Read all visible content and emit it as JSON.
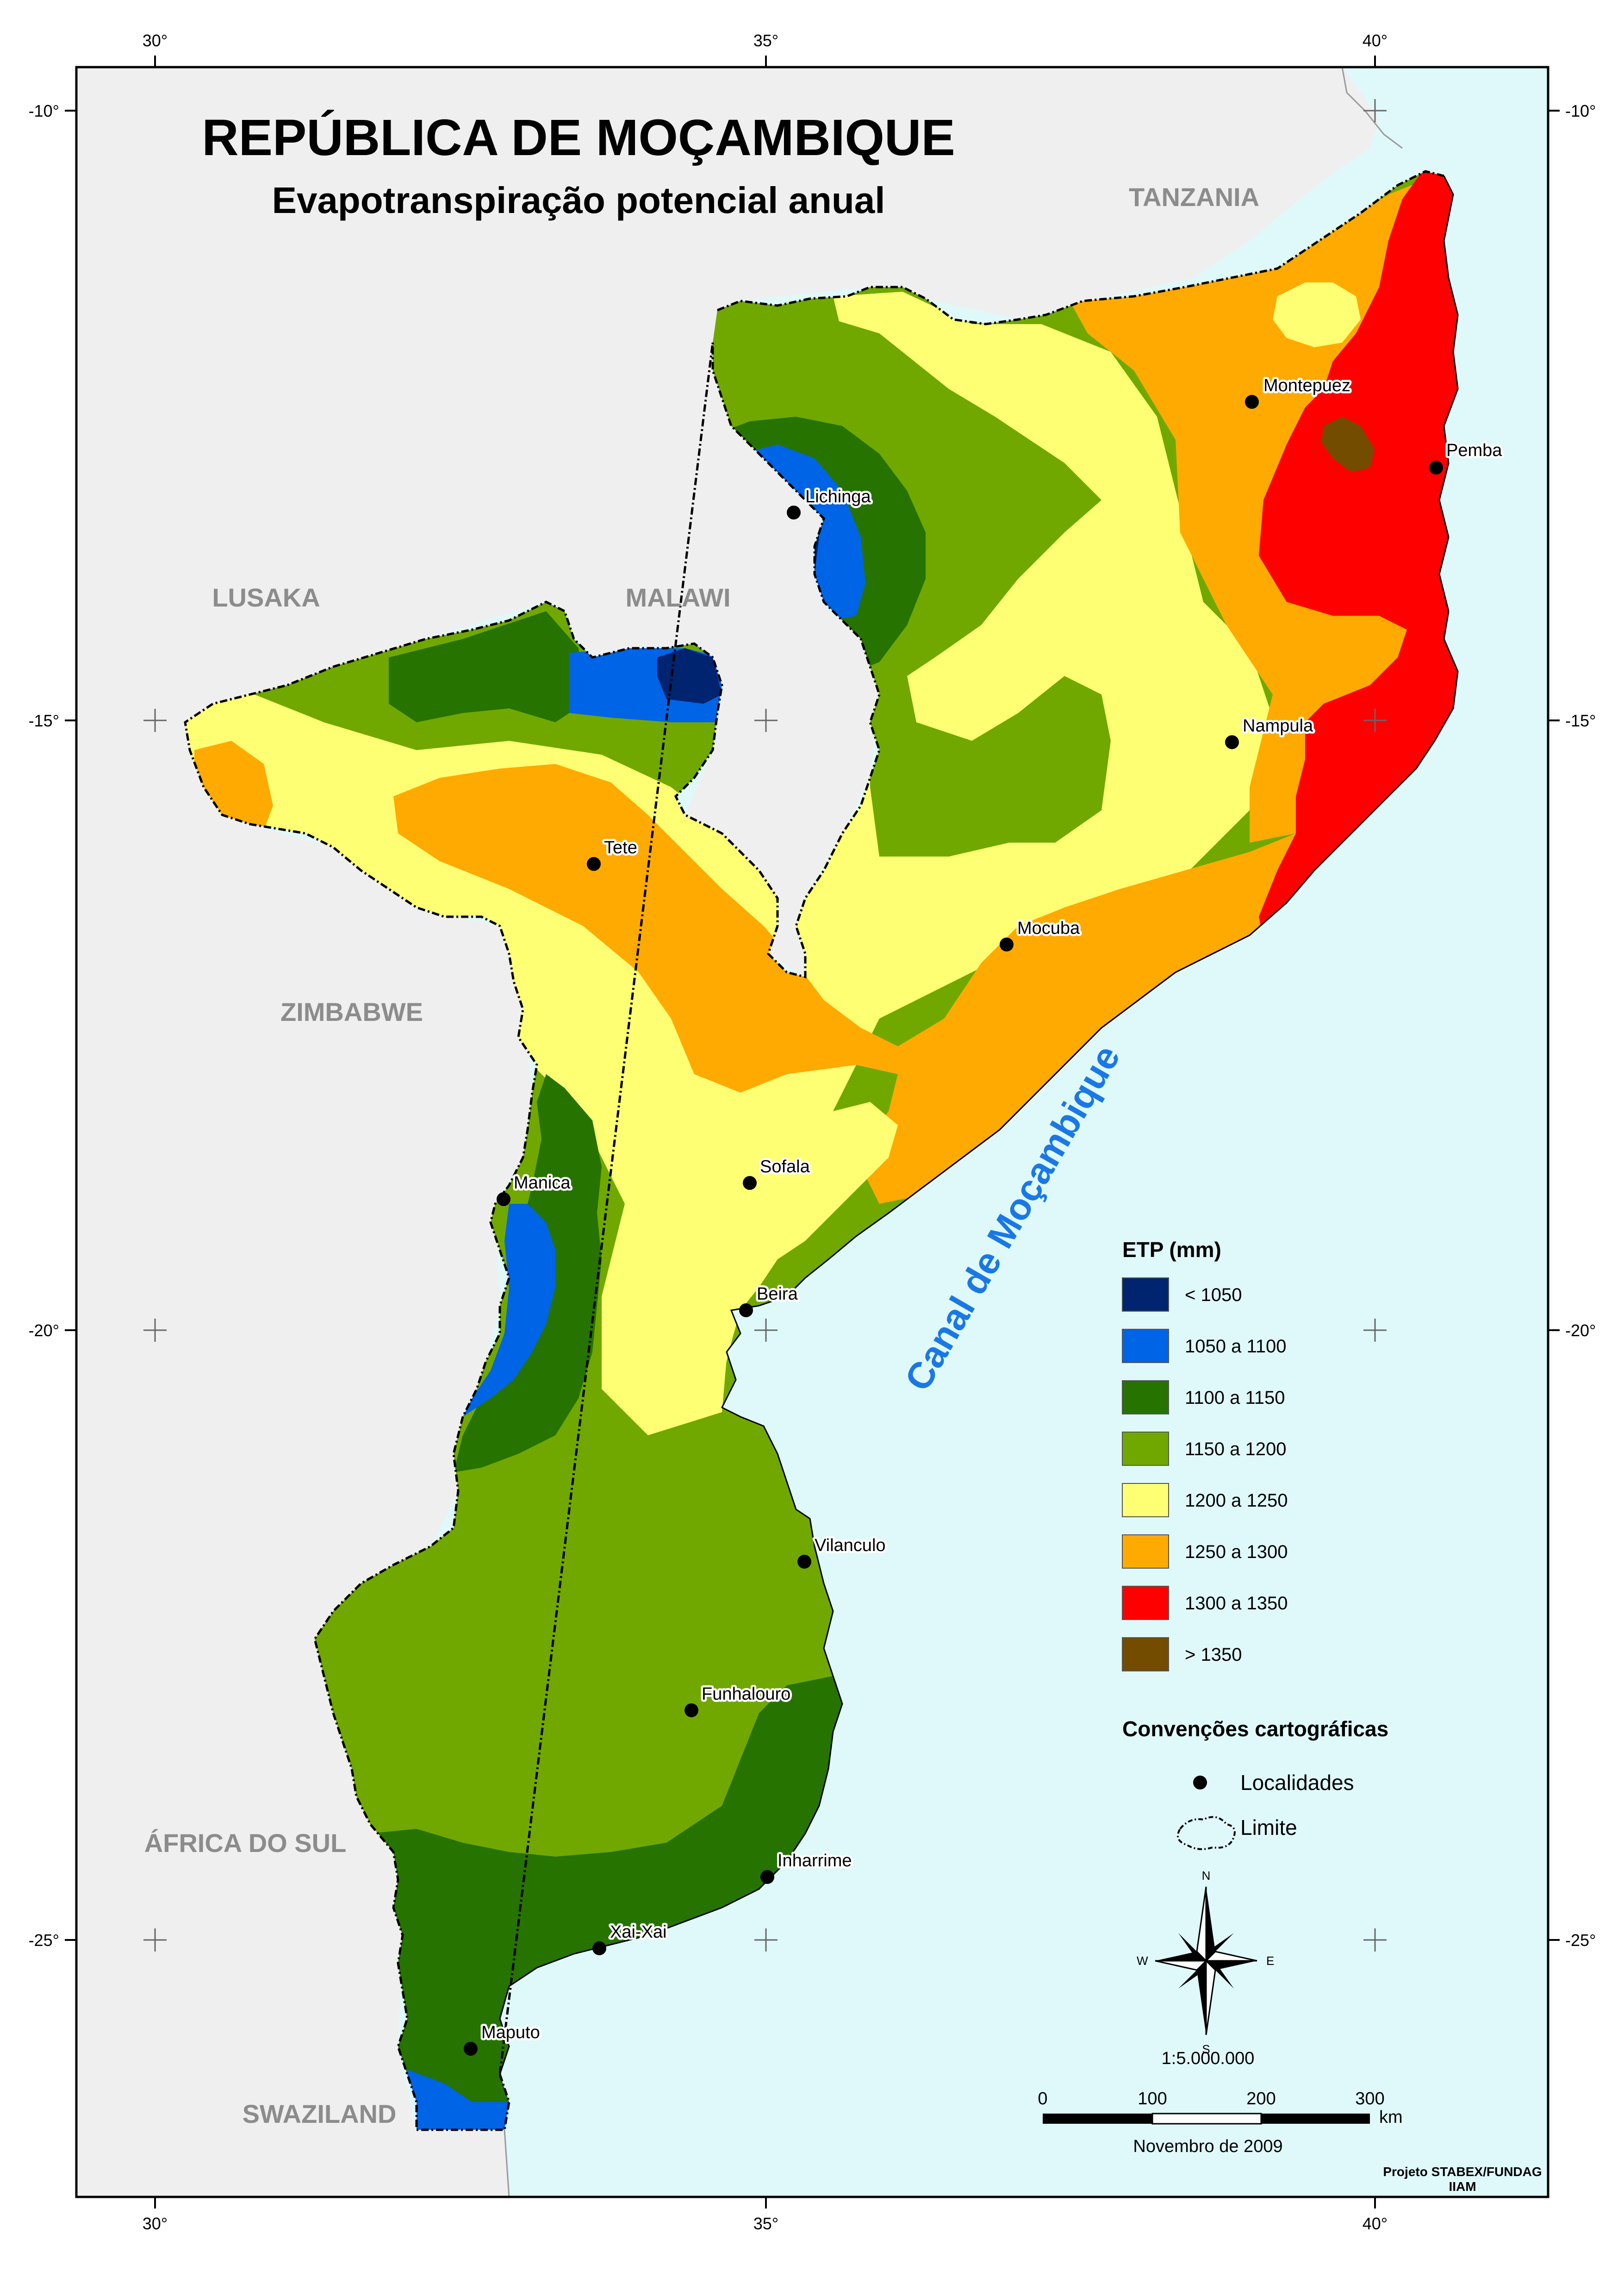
{
  "map": {
    "title": "REPÚBLICA DE MOÇAMBIQUE",
    "subtitle": "Evapotranspiração potencial anual",
    "sea_label": "Canal de Moçambique",
    "colors": {
      "sea": "#dff9fb",
      "land_outside": "#efefef",
      "lt1050": "#002470",
      "c1050_1100": "#0064e6",
      "c1100_1150": "#267300",
      "c1150_1200": "#70a800",
      "c1200_1250": "#ffff73",
      "c1250_1300": "#ffaa00",
      "c1300_1350": "#ff0000",
      "gt1350": "#734c00"
    },
    "grid": {
      "longitudes": [
        "30°",
        "35°",
        "40°"
      ],
      "latitudes": [
        "-10°",
        "-15°",
        "-20°",
        "-25°"
      ]
    },
    "countries": {
      "tanzania": "TANZANIA",
      "malawi": "MALAWI",
      "lusaka": "LUSAKA",
      "zimbabwe": "ZIMBABWE",
      "south_africa": "ÁFRICA DO SUL",
      "swaziland": "SWAZILAND"
    },
    "localities": [
      {
        "name": "Lichinga"
      },
      {
        "name": "Montepuez"
      },
      {
        "name": "Pemba"
      },
      {
        "name": "Nampula"
      },
      {
        "name": "Tete"
      },
      {
        "name": "Mocuba"
      },
      {
        "name": "Sofala"
      },
      {
        "name": "Manica"
      },
      {
        "name": "Beira"
      },
      {
        "name": "Vilanculo"
      },
      {
        "name": "Funhalouro"
      },
      {
        "name": "Inharrime"
      },
      {
        "name": "Xai-Xai"
      },
      {
        "name": "Maputo"
      }
    ]
  },
  "legend": {
    "title": "ETP (mm)",
    "items": [
      {
        "label": "< 1050",
        "color": "#002470"
      },
      {
        "label": "1050 a 1100",
        "color": "#0064e6"
      },
      {
        "label": "1100 a 1150",
        "color": "#267300"
      },
      {
        "label": "1150 a 1200",
        "color": "#70a800"
      },
      {
        "label": "1200 a 1250",
        "color": "#ffff73"
      },
      {
        "label": "1250 a 1300",
        "color": "#ffaa00"
      },
      {
        "label": "1300 a 1350",
        "color": "#ff0000"
      },
      {
        "label": "> 1350",
        "color": "#734c00"
      }
    ],
    "conventions_title": "Convenções cartográficas",
    "localities_label": "Localidades",
    "boundary_label": "Limite"
  },
  "compass": {
    "n": "N",
    "s": "S",
    "e": "E",
    "w": "W"
  },
  "scale": {
    "ratio": "1:5.000.000",
    "ticks": [
      "0",
      "100",
      "200",
      "300"
    ],
    "unit": "km"
  },
  "footer": {
    "date": "Novembro de 2009",
    "credit_line1": "Projeto STABEX/FUNDAG",
    "credit_line2": "IIAM"
  }
}
